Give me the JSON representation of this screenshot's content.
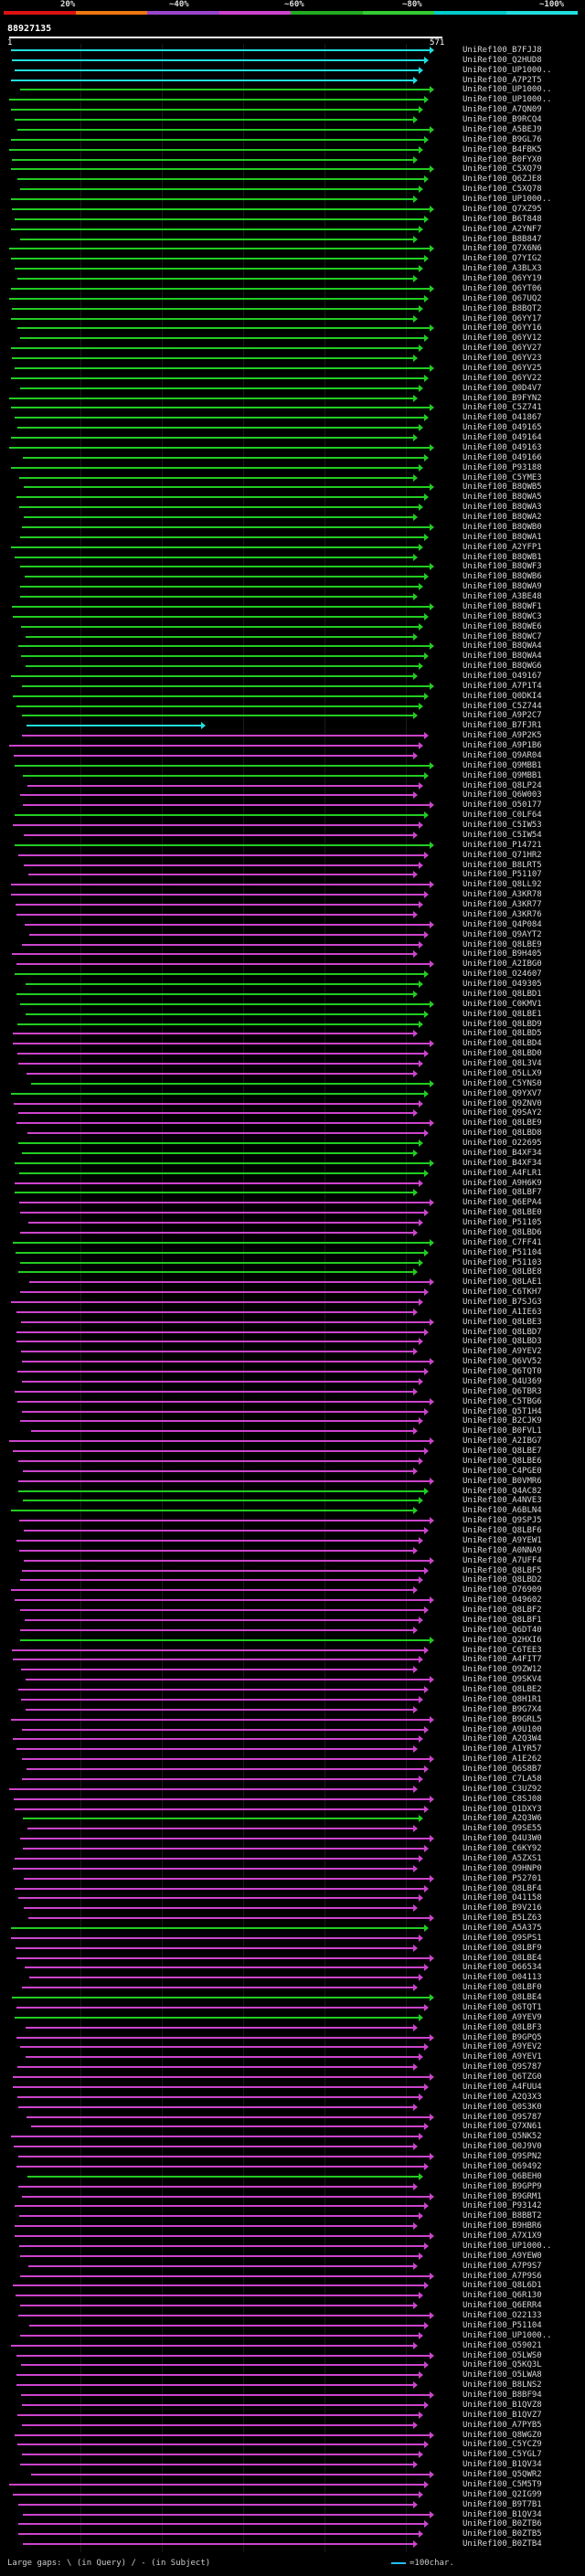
{
  "legend": {
    "colors": [
      "#dd1111",
      "#ee7711",
      "#9944cc",
      "#cc44cc",
      "#22aa22",
      "#33cc33",
      "#00cccc",
      "#22dddd"
    ],
    "labels": [
      "20%",
      "~40%",
      "~60%",
      "~80%",
      "~100%"
    ]
  },
  "query": {
    "id": "88927135",
    "start": "1",
    "end": "571"
  },
  "hits": [
    "UniRef100_B7FJJ8",
    "UniRef100_Q2HUD8",
    "UniRef100_UP1000..",
    "UniRef100_A7P2T5",
    "UniRef100_UP1000..",
    "UniRef100_UP1000..",
    "UniRef100_A7QN09",
    "UniRef100_B9RCQ4",
    "UniRef100_A5BEJ9",
    "UniRef100_B9GL76",
    "UniRef100_B4FBK5",
    "UniRef100_B0FYX0",
    "UniRef100_C5XQ79",
    "UniRef100_Q6ZJE8",
    "UniRef100_C5XQ78",
    "UniRef100_UP1000..",
    "UniRef100_Q7XZ95",
    "UniRef100_B6T848",
    "UniRef100_A2YNF7",
    "UniRef100_B8B847",
    "UniRef100_Q7X6N6",
    "UniRef100_Q7YIG2",
    "UniRef100_A3BLX3",
    "UniRef100_Q6YY19",
    "UniRef100_Q6YT06",
    "UniRef100_Q67UQ2",
    "UniRef100_B8BQT2",
    "UniRef100_Q6YY17",
    "UniRef100_Q6YY16",
    "UniRef100_Q6YV12",
    "UniRef100_Q6YV27",
    "UniRef100_Q6YV23",
    "UniRef100_Q6YV25",
    "UniRef100_Q6YV22",
    "UniRef100_Q0D4V7",
    "UniRef100_B9FYN2",
    "UniRef100_C5Z741",
    "UniRef100_O41867",
    "UniRef100_O49165",
    "UniRef100_O49164",
    "UniRef100_O49163",
    "UniRef100_O49166",
    "UniRef100_P93188",
    "UniRef100_C5YME3",
    "UniRef100_B8QWB5",
    "UniRef100_B8QWA5",
    "UniRef100_B8QWA3",
    "UniRef100_B8QWA2",
    "UniRef100_B8QWB0",
    "UniRef100_B8QWA1",
    "UniRef100_A2YFP1",
    "UniRef100_B8QWB1",
    "UniRef100_B8QWF3",
    "UniRef100_B8QWB6",
    "UniRef100_B8QWA9",
    "UniRef100_A3BE48",
    "UniRef100_B8QWF1",
    "UniRef100_B8QWC3",
    "UniRef100_B8QWE6",
    "UniRef100_B8QWC7",
    "UniRef100_B8QWA4",
    "UniRef100_B8QWA4",
    "UniRef100_B8QWG6",
    "UniRef100_O49167",
    "UniRef100_A7P1T4",
    "UniRef100_Q0DKI4",
    "UniRef100_C5Z744",
    "UniRef100_A9P2C7",
    "UniRef100_B7FJR1",
    "UniRef100_A9P2K5",
    "UniRef100_A9P1B6",
    "UniRef100_Q9AR04",
    "UniRef100_Q9MBB1",
    "UniRef100_Q9MBB1",
    "UniRef100_Q8LP24",
    "UniRef100_Q6W003",
    "UniRef100_O50177",
    "UniRef100_C0LF64",
    "UniRef100_C5IW53",
    "UniRef100_C5IW54",
    "UniRef100_P14721",
    "UniRef100_Q71HR2",
    "UniRef100_B8LRT5",
    "UniRef100_P51107",
    "UniRef100_Q8LL92",
    "UniRef100_A3KR78",
    "UniRef100_A3KR77",
    "UniRef100_A3KR76",
    "UniRef100_Q4P084",
    "UniRef100_Q9AYT2",
    "UniRef100_Q8LBE9",
    "UniRef100_B9H405",
    "UniRef100_A2IBG0",
    "UniRef100_O24607",
    "UniRef100_O49305",
    "UniRef100_Q8LBD1",
    "UniRef100_C0KMV1",
    "UniRef100_Q8LBE1",
    "UniRef100_Q8LBD9",
    "UniRef100_Q8LBD5",
    "UniRef100_Q8LBD4",
    "UniRef100_Q8LBD0",
    "UniRef100_Q8L3V4",
    "UniRef100_O5LLX9",
    "UniRef100_C5YNS0",
    "UniRef100_Q9YXV7",
    "UniRef100_Q9ZNV0",
    "UniRef100_Q9SAY2",
    "UniRef100_Q8LBE9",
    "UniRef100_Q8LBD8",
    "UniRef100_O22695",
    "UniRef100_B4XF34",
    "UniRef100_B4XF34",
    "UniRef100_A4FLR1",
    "UniRef100_A9H6K9",
    "UniRef100_Q8LBF7",
    "UniRef100_Q6EPA4",
    "UniRef100_Q8LBE0",
    "UniRef100_P51105",
    "UniRef100_Q8LBD6",
    "UniRef100_C7FF41",
    "UniRef100_P51104",
    "UniRef100_P51103",
    "UniRef100_Q8LBE8",
    "UniRef100_Q8LAE1",
    "UniRef100_C6TKH7",
    "UniRef100_B7SJG3",
    "UniRef100_A1IE63",
    "UniRef100_Q8LBE3",
    "UniRef100_Q8LBD7",
    "UniRef100_Q8LBD3",
    "UniRef100_A9YEV2",
    "UniRef100_Q6VV52",
    "UniRef100_Q6TQT0",
    "UniRef100_Q4U369",
    "UniRef100_Q6TBR3",
    "UniRef100_C5TBG6",
    "UniRef100_Q5T1H4",
    "UniRef100_B2CJK9",
    "UniRef100_B0FVL1",
    "UniRef100_A2IBG7",
    "UniRef100_Q8LBE7",
    "UniRef100_Q8LBE6",
    "UniRef100_C4PGE0",
    "UniRef100_B0VMR6",
    "UniRef100_Q4AC82",
    "UniRef100_A4NVE3",
    "UniRef100_A6BLN4",
    "UniRef100_Q9SPJ5",
    "UniRef100_Q8LBF6",
    "UniRef100_A9YEW1",
    "UniRef100_A0NNA9",
    "UniRef100_A7UFF4",
    "UniRef100_Q8LBF5",
    "UniRef100_Q8LBD2",
    "UniRef100_O76909",
    "UniRef100_O49602",
    "UniRef100_Q8LBF2",
    "UniRef100_Q8LBF1",
    "UniRef100_Q6DT40",
    "UniRef100_Q2HXI6",
    "UniRef100_C6TEE3",
    "UniRef100_A4FIT7",
    "UniRef100_Q9ZW12",
    "UniRef100_Q9SKV4",
    "UniRef100_Q8LBE2",
    "UniRef100_Q8H1R1",
    "UniRef100_B9G7X4",
    "UniRef100_B9GRL5",
    "UniRef100_A9U100",
    "UniRef100_A2Q3W4",
    "UniRef100_A1YR57",
    "UniRef100_A1E262",
    "UniRef100_Q6S8B7",
    "UniRef100_C7LA58",
    "UniRef100_C3UZ92",
    "UniRef100_C8SJ08",
    "UniRef100_Q1DXY3",
    "UniRef100_A2Q3W6",
    "UniRef100_Q9SE55",
    "UniRef100_Q4U3W0",
    "UniRef100_C6KY92",
    "UniRef100_A5ZXS1",
    "UniRef100_Q9HNP0",
    "UniRef100_P52701",
    "UniRef100_Q8LBF4",
    "UniRef100_O41158",
    "UniRef100_B9V216",
    "UniRef100_B5LZ63",
    "UniRef100_A5A375",
    "UniRef100_Q9SPS1",
    "UniRef100_Q8LBF9",
    "UniRef100_Q8LBE4",
    "UniRef100_O66534",
    "UniRef100_O04113",
    "UniRef100_Q8LBF0",
    "UniRef100_Q8LBE4",
    "UniRef100_Q6TQT1",
    "UniRef100_A9YEV9",
    "UniRef100_Q8LBF3",
    "UniRef100_B9GPQ5",
    "UniRef100_A9YEV2",
    "UniRef100_A9YEV1",
    "UniRef100_Q9S787",
    "UniRef100_Q6TZG0",
    "UniRef100_A4FUU4",
    "UniRef100_A2Q3X3",
    "UniRef100_Q0S3K0",
    "UniRef100_Q9S787",
    "UniRef100_Q7XN61",
    "UniRef100_Q5NK52",
    "UniRef100_Q0J9V0",
    "UniRef100_Q9SPN2",
    "UniRef100_Q69492",
    "UniRef100_Q6BEH0",
    "UniRef100_B9GPP9",
    "UniRef100_B9GRM1",
    "UniRef100_P93142",
    "UniRef100_B8BBT2",
    "UniRef100_B9HBR6",
    "UniRef100_A7X1X9",
    "UniRef100_UP1000..",
    "UniRef100_A9YEW0",
    "UniRef100_A7P9S7",
    "UniRef100_A7P9S6",
    "UniRef100_Q8L6D1",
    "UniRef100_Q6R130",
    "UniRef100_Q6ERR4",
    "UniRef100_O22133",
    "UniRef100_P51104",
    "UniRef100_UP1000..",
    "UniRef100_O59021",
    "UniRef100_O5LWS0",
    "UniRef100_Q5KQ3L",
    "UniRef100_O5LWA8",
    "UniRef100_B8LNS2",
    "UniRef100_B8BF94",
    "UniRef100_B1QVZ8",
    "UniRef100_B1QVZ7",
    "UniRef100_A7PYB5",
    "UniRef100_Q8WGZ0",
    "UniRef100_C5YCZ9",
    "UniRef100_C5YGL7",
    "UniRef100_B1QV34",
    "UniRef100_Q5QWR2",
    "UniRef100_C5M5T9",
    "UniRef100_Q2IG99",
    "UniRef100_B9T7B1",
    "UniRef100_B1QV34",
    "UniRef100_B0ZTB6",
    "UniRef100_B0ZTB5",
    "UniRef100_B0ZTB4"
  ],
  "footer": {
    "left": "Large gaps: \\ (in Query) / - (in Subject)",
    "scale": "=100char."
  }
}
